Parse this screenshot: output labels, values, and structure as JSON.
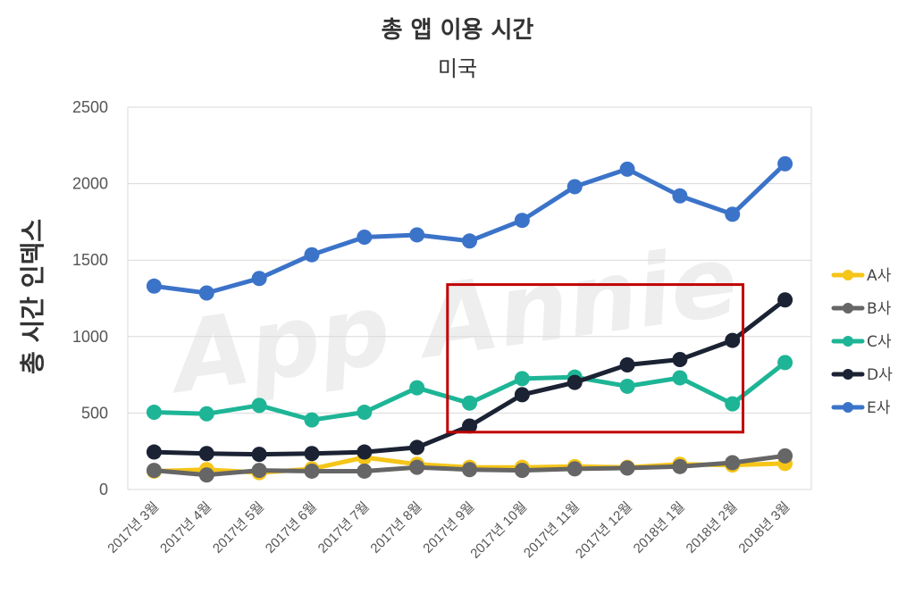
{
  "chart_data": {
    "type": "line",
    "title": "총 앱 이용 시간",
    "subtitle": "미국",
    "xlabel": "",
    "ylabel": "총 시간 인덱스",
    "watermark": "App Annie",
    "ylim": [
      0,
      2500
    ],
    "yticks": [
      0,
      500,
      1000,
      1500,
      2000,
      2500
    ],
    "grid": true,
    "legend_position": "right",
    "categories": [
      "2017년 3월",
      "2017년 4월",
      "2017년 5월",
      "2017년 6월",
      "2017년 7월",
      "2017년 8월",
      "2017년 9월",
      "2017년 10월",
      "2017년 11월",
      "2017년 12월",
      "2018년 1월",
      "2018년 2월",
      "2018년 3월"
    ],
    "highlight": {
      "from_category": "2017년 9월",
      "to_category": "2018년 2월",
      "y_range": [
        375,
        1340
      ],
      "color": "#c00000"
    },
    "series": [
      {
        "name": "A사",
        "color": "#f5c518",
        "values": [
          120,
          130,
          110,
          135,
          210,
          165,
          145,
          145,
          150,
          145,
          165,
          160,
          170
        ]
      },
      {
        "name": "B사",
        "color": "#666666",
        "values": [
          125,
          95,
          125,
          120,
          120,
          145,
          130,
          125,
          135,
          140,
          150,
          175,
          220
        ]
      },
      {
        "name": "C사",
        "color": "#1db596",
        "values": [
          505,
          495,
          550,
          455,
          505,
          665,
          565,
          725,
          735,
          675,
          730,
          560,
          830
        ]
      },
      {
        "name": "D사",
        "color": "#1a2233",
        "values": [
          245,
          235,
          230,
          235,
          245,
          275,
          415,
          620,
          700,
          815,
          850,
          975,
          1240
        ]
      },
      {
        "name": "E사",
        "color": "#3b73c9",
        "values": [
          1330,
          1285,
          1380,
          1535,
          1650,
          1665,
          1625,
          1760,
          1980,
          2095,
          1920,
          1800,
          2130
        ]
      }
    ]
  }
}
